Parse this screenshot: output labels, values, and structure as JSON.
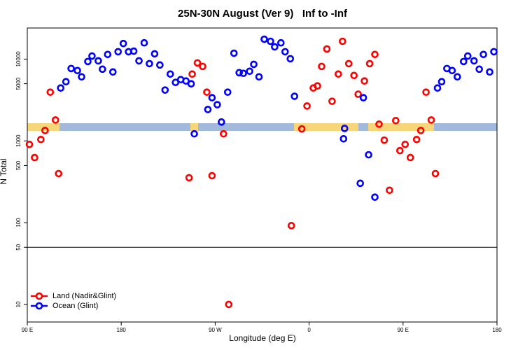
{
  "chart_data": {
    "type": "scatter",
    "title": "25N-30N August (Ver 9)   Inf to -Inf",
    "xlabel": "Longitude (deg E)",
    "ylabel": "N Total",
    "xlim": [
      90,
      540
    ],
    "xticks": [
      {
        "value": 90,
        "label": "90 E"
      },
      180,
      {
        "value": 270,
        "label": "90 W"
      },
      {
        "value": 360,
        "label": "0"
      },
      {
        "value": 450,
        "label": "90 E"
      },
      {
        "value": 540,
        "label": "180"
      }
    ],
    "ylim": [
      6.1,
      24000
    ],
    "yscale": "log",
    "yticks": [
      10,
      50,
      100,
      500,
      1000,
      5000,
      10000
    ],
    "hlines": [
      50
    ],
    "legend": "bottom-left",
    "series": [
      {
        "name": "Land (Nadir&Glint)",
        "color": "#ff0000",
        "x": [
          92,
          97,
          103,
          107,
          112,
          117,
          120,
          245,
          248,
          253,
          258,
          262,
          267,
          278,
          283,
          343,
          353,
          358,
          364,
          368,
          372,
          377,
          382,
          388,
          392,
          398,
          403,
          407,
          413,
          418,
          423,
          427,
          432,
          437,
          443,
          447,
          452,
          457,
          463,
          467,
          472,
          477,
          481
        ],
        "values": [
          906,
          625,
          1040,
          1340,
          3940,
          1800,
          398,
          354,
          6560,
          8980,
          8140,
          3940,
          375,
          1220,
          10,
          92,
          1400,
          2670,
          4430,
          4700,
          8140,
          13300,
          3050,
          6560,
          16500,
          8800,
          6310,
          3720,
          5400,
          8800,
          11400,
          1600,
          1020,
          249,
          1770,
          760,
          906,
          625,
          1040,
          1340,
          3940,
          1800,
          398
        ]
      },
      {
        "name": "Ocean (Glint)",
        "color": "#0000ff",
        "x": [
          122,
          127,
          132,
          138,
          142,
          148,
          152,
          158,
          162,
          167,
          172,
          177,
          182,
          187,
          192,
          197,
          202,
          207,
          212,
          217,
          222,
          227,
          232,
          237,
          242,
          247,
          250,
          263,
          267,
          272,
          276,
          282,
          288,
          293,
          297,
          303,
          307,
          312,
          317,
          323,
          327,
          333,
          337,
          342,
          346,
          394,
          393,
          409,
          412,
          417,
          423,
          483,
          487,
          492,
          497,
          502,
          508,
          512,
          518,
          523,
          527,
          533,
          537
        ],
        "values": [
          4430,
          5290,
          7670,
          7240,
          6070,
          9340,
          10900,
          9520,
          7530,
          11400,
          6960,
          12300,
          15500,
          12300,
          12500,
          9520,
          15800,
          8800,
          11600,
          8470,
          4180,
          6560,
          5190,
          5610,
          5400,
          4990,
          1220,
          2420,
          3370,
          2770,
          1700,
          3940,
          11800,
          6820,
          6700,
          7100,
          8630,
          6070,
          17500,
          16500,
          14100,
          15800,
          12300,
          10100,
          3510,
          1420,
          1060,
          303,
          3370,
          676,
          205,
          4430,
          5290,
          7670,
          7240,
          6070,
          9340,
          10900,
          9520,
          7530,
          11400,
          6960,
          12300
        ]
      }
    ]
  }
}
